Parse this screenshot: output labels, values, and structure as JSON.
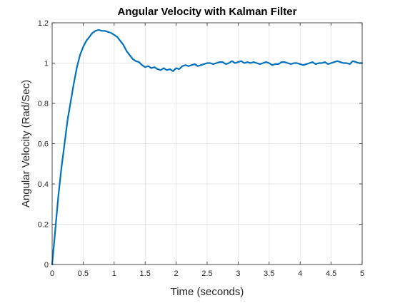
{
  "chart_data": {
    "type": "line",
    "title": "Angular Velocity with Kalman Filter",
    "xlabel": "Time (seconds)",
    "ylabel": "Angular Velocity (Rad/Sec)",
    "xlim": [
      0,
      5
    ],
    "ylim": [
      0,
      1.2
    ],
    "xticks": [
      "0",
      "0.5",
      "1",
      "1.5",
      "2",
      "2.5",
      "3",
      "3.5",
      "4",
      "4.5",
      "5"
    ],
    "yticks": [
      "0",
      "0.2",
      "0.4",
      "0.6",
      "0.8",
      "1",
      "1.2"
    ],
    "grid": true,
    "series": [
      {
        "color": "#0072BD",
        "x": [
          0,
          0.05,
          0.1,
          0.15,
          0.2,
          0.25,
          0.3,
          0.35,
          0.4,
          0.45,
          0.5,
          0.55,
          0.6,
          0.65,
          0.7,
          0.75,
          0.8,
          0.85,
          0.9,
          0.95,
          1.0,
          1.05,
          1.1,
          1.15,
          1.2,
          1.25,
          1.3,
          1.35,
          1.4,
          1.45,
          1.5,
          1.55,
          1.6,
          1.65,
          1.7,
          1.75,
          1.8,
          1.85,
          1.9,
          1.95,
          2.0,
          2.05,
          2.1,
          2.15,
          2.2,
          2.25,
          2.3,
          2.35,
          2.4,
          2.45,
          2.5,
          2.55,
          2.6,
          2.65,
          2.7,
          2.75,
          2.8,
          2.85,
          2.9,
          2.95,
          3.0,
          3.05,
          3.1,
          3.15,
          3.2,
          3.25,
          3.3,
          3.35,
          3.4,
          3.45,
          3.5,
          3.55,
          3.6,
          3.65,
          3.7,
          3.75,
          3.8,
          3.85,
          3.9,
          3.95,
          4.0,
          4.05,
          4.1,
          4.15,
          4.2,
          4.25,
          4.3,
          4.35,
          4.4,
          4.45,
          4.5,
          4.55,
          4.6,
          4.65,
          4.7,
          4.75,
          4.8,
          4.85,
          4.9,
          4.95,
          5.0
        ],
        "y": [
          0,
          0.17,
          0.34,
          0.48,
          0.6,
          0.72,
          0.81,
          0.9,
          0.98,
          1.04,
          1.08,
          1.11,
          1.13,
          1.15,
          1.16,
          1.165,
          1.16,
          1.16,
          1.155,
          1.15,
          1.14,
          1.13,
          1.11,
          1.09,
          1.06,
          1.04,
          1.02,
          1.01,
          1.005,
          0.99,
          0.98,
          0.985,
          0.975,
          0.98,
          0.97,
          0.965,
          0.975,
          0.965,
          0.97,
          0.96,
          0.975,
          0.97,
          0.985,
          0.99,
          0.985,
          0.99,
          0.995,
          0.985,
          0.99,
          0.995,
          1.0,
          1.0,
          0.995,
          1.0,
          1.005,
          1.005,
          0.995,
          1.0,
          1.01,
          1.0,
          1.005,
          1.01,
          1.0,
          1.005,
          1.0,
          1.005,
          1.0,
          0.995,
          1.0,
          1.005,
          1.0,
          0.99,
          0.995,
          0.995,
          1.005,
          1.005,
          1.0,
          0.995,
          1.0,
          1.0,
          0.995,
          0.99,
          0.995,
          1.0,
          1.005,
          0.995,
          1.0,
          1.0,
          1.005,
          0.995,
          1.0,
          1.005,
          1.01,
          1.005,
          1.0,
          1.0,
          0.995,
          1.01,
          1.005,
          1.0,
          1.0
        ]
      }
    ]
  }
}
